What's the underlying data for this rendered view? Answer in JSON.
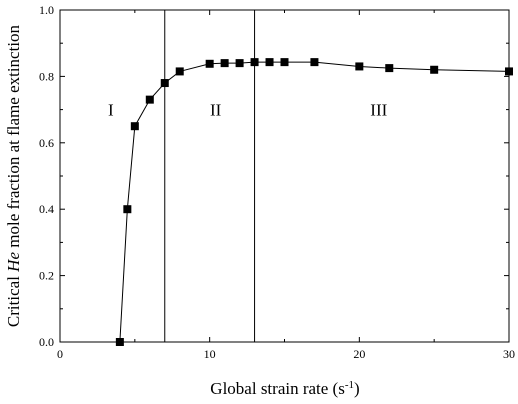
{
  "chart_data": {
    "type": "line",
    "title": "",
    "xlabel": {
      "text": "Global strain rate (s",
      "sup": "-1",
      "tail": ")"
    },
    "ylabel": {
      "prefix": "Critical ",
      "italic": "He",
      "suffix": " mole fraction at flame extinction"
    },
    "xlim": [
      0,
      30
    ],
    "ylim": [
      0.0,
      1.0
    ],
    "xticks": [
      0,
      10,
      20,
      30
    ],
    "xtick_labels": [
      "0",
      "10",
      "20",
      "30"
    ],
    "yticks": [
      0.0,
      0.2,
      0.4,
      0.6,
      0.8,
      1.0
    ],
    "ytick_labels": [
      "0.0",
      "0.2",
      "0.4",
      "0.6",
      "0.8",
      "1.0"
    ],
    "grid": false,
    "marker": "square",
    "series": [
      {
        "x": [
          4,
          4.5,
          5,
          6,
          7,
          8,
          10,
          11,
          12,
          13,
          14,
          15,
          17,
          20,
          22,
          25,
          30
        ],
        "y": [
          0.0,
          0.4,
          0.65,
          0.73,
          0.78,
          0.815,
          0.838,
          0.84,
          0.84,
          0.843,
          0.843,
          0.843,
          0.843,
          0.83,
          0.825,
          0.82,
          0.815
        ]
      }
    ],
    "vlines": [
      7,
      13
    ],
    "region_labels": [
      {
        "text": "I",
        "x": 3.4,
        "y": 0.7
      },
      {
        "text": "II",
        "x": 10.4,
        "y": 0.7
      },
      {
        "text": "III",
        "x": 21.3,
        "y": 0.7
      }
    ]
  }
}
